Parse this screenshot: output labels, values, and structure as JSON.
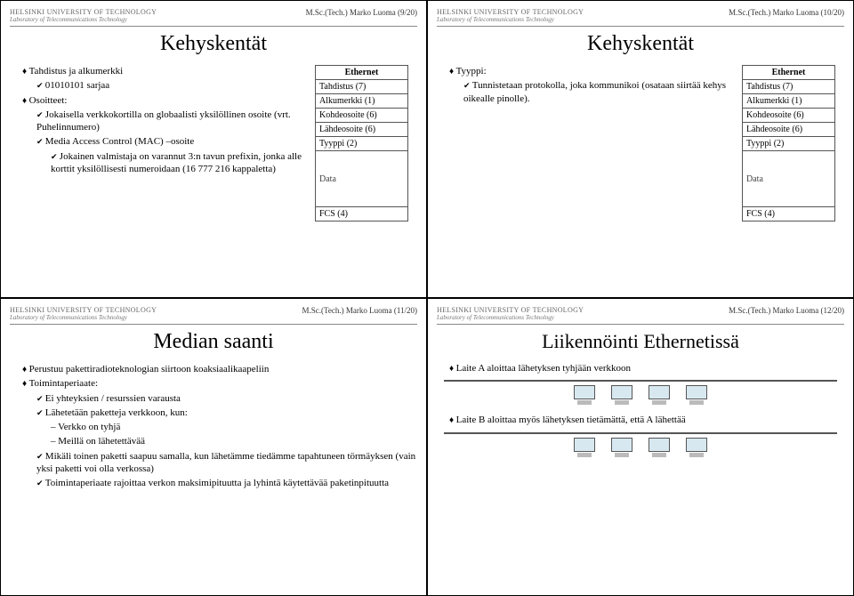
{
  "header": {
    "university": "HELSINKI UNIVERSITY OF TECHNOLOGY",
    "lab": "Laboratory of Telecommunications Technology",
    "author": "M.Sc.(Tech.) Marko Luoma"
  },
  "frame_table": {
    "header": "Ethernet",
    "rows": [
      "Tahdistus (7)",
      "Alkumerkki (1)",
      "Kohdeosoite (6)",
      "Lähdeosoite (6)",
      "Tyyppi (2)"
    ],
    "data": "Data",
    "footer": "FCS (4)"
  },
  "slides": {
    "s9": {
      "pg": "(9/20)",
      "title": "Kehyskentät",
      "b1": "Tahdistus ja alkumerkki",
      "b1a": "01010101 sarjaa",
      "b2": "Osoitteet:",
      "b2a": "Jokaisella verkkokortilla on globaalisti yksilöllinen osoite (vrt. Puhelinnumero)",
      "b2b": "Media Access Control (MAC) –osoite",
      "b2b1": "Jokainen valmistaja on varannut 3:n tavun prefixin, jonka alle korttit yksilöllisesti numeroidaan (16 777 216 kappaletta)"
    },
    "s10": {
      "pg": "(10/20)",
      "title": "Kehyskentät",
      "b1": "Tyyppi:",
      "b1a": "Tunnistetaan protokolla, joka kommunikoi (osataan siirtää kehys oikealle pinolle)."
    },
    "s11": {
      "pg": "(11/20)",
      "title": "Median saanti",
      "b1": "Perustuu pakettiradioteknologian siirtoon koaksiaalikaapeliin",
      "b2": "Toimintaperiaate:",
      "b2a": "Ei yhteyksien / resurssien varausta",
      "b2b": "Lähetetään paketteja verkkoon, kun:",
      "b2b1": "Verkko on tyhjä",
      "b2b2": "Meillä on lähetettävää",
      "b2c": "Mikäli toinen paketti saapuu samalla, kun lähetämme tiedämme tapahtuneen törmäyksen (vain yksi paketti voi olla verkossa)",
      "b2d": "Toimintaperiaate rajoittaa verkon maksimipituutta ja lyhintä käytettävää paketinpituutta"
    },
    "s12": {
      "pg": "(12/20)",
      "title": "Liikennöinti Ethernetissä",
      "b1": "Laite A aloittaa lähetyksen tyhjään verkkoon",
      "b2": "Laite B aloittaa myös lähetyksen tietämättä, että A lähettää"
    }
  }
}
